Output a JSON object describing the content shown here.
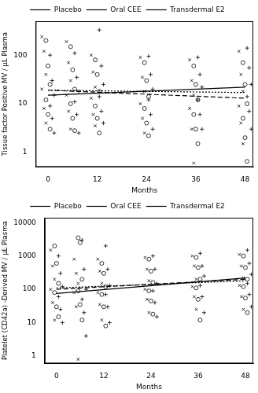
{
  "chart_data": [
    {
      "type": "scatter",
      "x_label": "Months",
      "y_label": "Tissue factor Positive MV / µL Plasma",
      "xlim": [
        -3,
        50
      ],
      "xticks": [
        0,
        12,
        24,
        36,
        48
      ],
      "ylim": [
        0.5,
        500
      ],
      "yticks": [
        1,
        10,
        100
      ],
      "log": "y",
      "grid": false,
      "legend": "top",
      "series": [
        {
          "name": "Placebo",
          "color": "#000000",
          "marker": "x",
          "line_style": "dotted",
          "x": [
            -1.5,
            -1,
            -0.5,
            -1.5,
            -1,
            -0.5,
            4.5,
            5,
            5.5,
            4.5,
            5,
            5.5,
            10.5,
            11,
            11.5,
            10.5,
            11,
            11.5,
            22.5,
            23,
            23.5,
            22.5,
            23,
            23.5,
            34.5,
            35,
            35.5,
            34.5,
            35,
            35.5,
            46.5,
            47,
            47.5,
            46.5,
            47,
            47.5
          ],
          "values": [
            240,
            120,
            40,
            20,
            8,
            4,
            190,
            70,
            30,
            15,
            7,
            3,
            100,
            45,
            22,
            13,
            6,
            3.5,
            90,
            35,
            18,
            10,
            5,
            2.5,
            80,
            30,
            15,
            8,
            3,
            0.6,
            120,
            40,
            18,
            9,
            4,
            1.5
          ],
          "trend": {
            "x": [
              0,
              48
            ],
            "values": [
              19,
              17
            ]
          }
        },
        {
          "name": "Oral CEE",
          "color": "#000000",
          "marker": "circle",
          "line_style": "dashed",
          "x": [
            -0.5,
            0,
            0.5,
            -0.5,
            0,
            0.5,
            5.5,
            6,
            6.5,
            5.5,
            6,
            6.5,
            11.5,
            12,
            12.5,
            11.5,
            12,
            12.5,
            23.5,
            24,
            24.5,
            23.5,
            24,
            24.5,
            35.5,
            36,
            36.5,
            35.5,
            36,
            36.5,
            47.5,
            48,
            48.5,
            47.5,
            48,
            48.5
          ],
          "values": [
            200,
            60,
            25,
            12,
            6,
            3,
            150,
            50,
            20,
            10,
            5,
            2.8,
            80,
            40,
            18,
            9,
            5,
            2.5,
            70,
            30,
            14,
            8,
            4,
            2.2,
            60,
            25,
            12,
            6,
            3,
            1.5,
            70,
            25,
            10,
            5,
            2,
            0.65
          ],
          "trend": {
            "x": [
              0,
              48
            ],
            "values": [
              19,
              13
            ]
          }
        },
        {
          "name": "Transdermal E2",
          "color": "#000000",
          "marker": "plus",
          "line_style": "solid",
          "x": [
            0.5,
            1,
            1.5,
            0.5,
            1,
            1.5,
            6.5,
            7,
            7.5,
            6.5,
            7,
            7.5,
            12.5,
            13,
            13.5,
            12.5,
            13,
            13.5,
            24.5,
            25,
            25.5,
            24.5,
            25,
            25.5,
            36.5,
            37,
            37.5,
            36.5,
            37,
            37.5,
            48.5,
            49,
            49.5,
            48.5,
            49,
            49.5
          ],
          "values": [
            100,
            30,
            15,
            9,
            5,
            2.5,
            110,
            35,
            18,
            11,
            6,
            2.5,
            330,
            60,
            25,
            14,
            7,
            4,
            95,
            40,
            20,
            12,
            6,
            3,
            90,
            40,
            22,
            12,
            6,
            3,
            140,
            55,
            25,
            14,
            7,
            3
          ],
          "trend": {
            "x": [
              0,
              48
            ],
            "values": [
              15,
              22
            ]
          }
        }
      ]
    },
    {
      "type": "scatter",
      "x_label": "Months",
      "y_label": "Platelet (CD42a) -Derived MV / µL Plasma",
      "xlim": [
        -3,
        50
      ],
      "xticks": [
        0,
        12,
        24,
        36,
        48
      ],
      "ylim": [
        0.6,
        14000
      ],
      "yticks": [
        1,
        10,
        100,
        1000,
        10000
      ],
      "log": "y",
      "grid": false,
      "legend": "top",
      "series": [
        {
          "name": "Placebo",
          "color": "#000000",
          "marker": "x",
          "line_style": "dotted",
          "x": [
            -1.5,
            -1,
            -0.5,
            -1.5,
            -1,
            -0.5,
            4.5,
            5,
            5.5,
            4.5,
            5,
            5.5,
            10.5,
            11,
            11.5,
            10.5,
            11,
            11.5,
            22.5,
            23,
            23.5,
            22.5,
            23,
            23.5,
            34.5,
            35,
            35.5,
            34.5,
            35,
            35.5,
            46.5,
            47,
            47.5,
            46.5,
            47,
            47.5
          ],
          "values": [
            1500,
            500,
            200,
            100,
            40,
            12,
            800,
            300,
            150,
            80,
            30,
            0.8,
            800,
            350,
            150,
            80,
            35,
            12,
            900,
            400,
            180,
            100,
            50,
            20,
            1000,
            500,
            200,
            120,
            60,
            25,
            1100,
            500,
            220,
            130,
            60,
            25
          ],
          "trend": {
            "x": [
              0,
              48
            ],
            "values": [
              110,
              180
            ]
          }
        },
        {
          "name": "Oral CEE",
          "color": "#000000",
          "marker": "circle",
          "line_style": "dashed",
          "x": [
            -0.5,
            0,
            0.5,
            -0.5,
            0,
            0.5,
            5.5,
            6,
            6.5,
            5.5,
            6,
            6.5,
            11.5,
            12,
            12.5,
            11.5,
            12,
            12.5,
            23.5,
            24,
            24.5,
            23.5,
            24,
            24.5,
            35.5,
            36,
            36.5,
            35.5,
            36,
            36.5,
            47.5,
            48,
            48.5,
            47.5,
            48,
            48.5
          ],
          "values": [
            2000,
            600,
            150,
            80,
            30,
            15,
            3500,
            2500,
            200,
            90,
            35,
            12,
            600,
            300,
            120,
            70,
            30,
            8,
            800,
            350,
            160,
            90,
            45,
            18,
            900,
            450,
            200,
            110,
            50,
            12,
            1000,
            450,
            200,
            120,
            55,
            20
          ],
          "trend": {
            "x": [
              0,
              48
            ],
            "values": [
              100,
              200
            ]
          }
        },
        {
          "name": "Transdermal E2",
          "color": "#000000",
          "marker": "plus",
          "line_style": "solid",
          "x": [
            0.5,
            1,
            1.5,
            0.5,
            1,
            1.5,
            6.5,
            7,
            7.5,
            6.5,
            7,
            7.5,
            12.5,
            13,
            13.5,
            12.5,
            13,
            13.5,
            24.5,
            25,
            25.5,
            24.5,
            25,
            25.5,
            36.5,
            37,
            37.5,
            36.5,
            37,
            37.5,
            48.5,
            49,
            49.5,
            48.5,
            49,
            49.5
          ],
          "values": [
            1000,
            300,
            120,
            60,
            25,
            10,
            3000,
            400,
            100,
            50,
            20,
            4,
            2000,
            400,
            130,
            70,
            30,
            10,
            1000,
            400,
            150,
            90,
            40,
            15,
            1200,
            500,
            250,
            130,
            60,
            20,
            1500,
            600,
            280,
            150,
            70,
            30
          ],
          "trend": {
            "x": [
              0,
              48
            ],
            "values": [
              75,
              220
            ]
          }
        }
      ]
    }
  ]
}
